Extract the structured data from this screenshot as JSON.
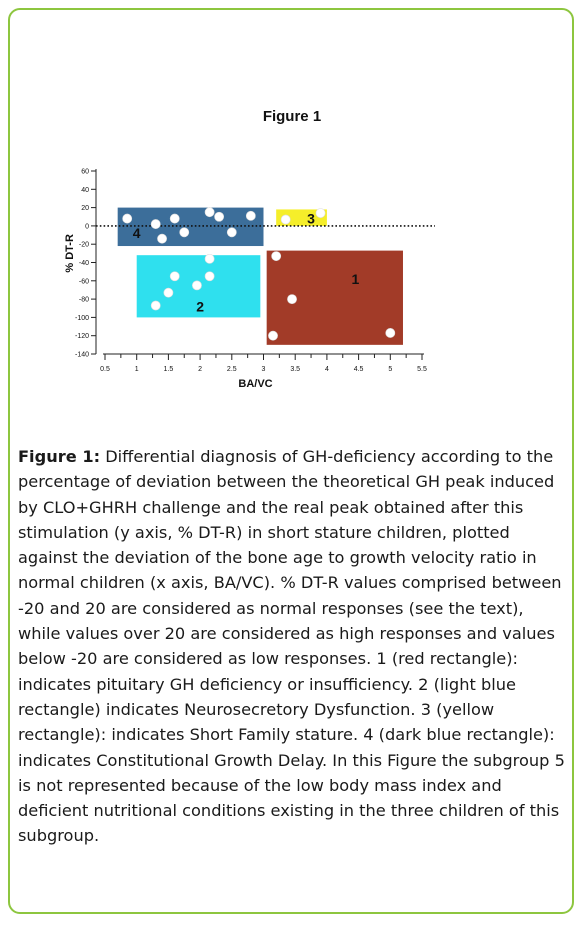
{
  "figure": {
    "title": "Figure 1",
    "caption_label": "Figure 1:",
    "caption_text": "Differential diagnosis of GH-deficiency according to the percentage of deviation between the theoretical GH peak induced by CLO+GHRH challenge and the real peak obtained after this stimulation (y axis, % DT-R) in short stature children, plotted against the deviation of the bone age to growth velocity ratio in normal children (x axis, BA/VC). % DT-R values comprised between -20 and 20 are considered as normal responses (see the text), while values over 20 are considered as high responses and values below -20 are considered as low responses. 1 (red rectangle): indicates pituitary GH deficiency or insufficiency. 2 (light blue rectangle) indicates Neurosecretory Dysfunction. 3 (yellow rectangle): indicates Short Family stature. 4 (dark blue rectangle): indicates Constitutional Growth Delay. In this Figure the subgroup 5 is not represented because of the low body mass index and deficient nutritional conditions existing in the three children of this subgroup."
  },
  "chart_data": {
    "type": "scatter",
    "title": "",
    "xlabel": "BA/VC",
    "ylabel": "% DT-R",
    "xlim": [
      0.5,
      5.5
    ],
    "ylim": [
      -140,
      60
    ],
    "x_ticks": [
      "0.5",
      "1",
      "1.5",
      "2",
      "2.5",
      "3",
      "3.5",
      "4",
      "4.5",
      "5",
      "5.5"
    ],
    "y_ticks": [
      "60",
      "40",
      "20",
      "0",
      "-20",
      "-40",
      "-60",
      "-80",
      "-100",
      "-120",
      "-140"
    ],
    "reference_line": {
      "y": 0,
      "style": "dotted"
    },
    "regions": [
      {
        "label": "4",
        "x": [
          0.7,
          3.0
        ],
        "y": [
          -22,
          20
        ],
        "color": "#3c6e9a"
      },
      {
        "label": "3",
        "x": [
          3.2,
          4.0
        ],
        "y": [
          0,
          18
        ],
        "color": "#f5ee2a"
      },
      {
        "label": "2",
        "x": [
          1.0,
          2.95
        ],
        "y": [
          -100,
          -32
        ],
        "color": "#2fe0ee"
      },
      {
        "label": "1",
        "x": [
          3.05,
          5.2
        ],
        "y": [
          -130,
          -27
        ],
        "color": "#a23b28"
      }
    ],
    "points": [
      {
        "x": 0.85,
        "y": 8
      },
      {
        "x": 1.3,
        "y": 2
      },
      {
        "x": 1.4,
        "y": -14
      },
      {
        "x": 1.6,
        "y": 8
      },
      {
        "x": 1.75,
        "y": -7
      },
      {
        "x": 2.15,
        "y": 15
      },
      {
        "x": 2.3,
        "y": 10
      },
      {
        "x": 2.5,
        "y": -7
      },
      {
        "x": 2.8,
        "y": 11
      },
      {
        "x": 3.35,
        "y": 7
      },
      {
        "x": 3.9,
        "y": 14
      },
      {
        "x": 1.6,
        "y": -55
      },
      {
        "x": 1.5,
        "y": -73
      },
      {
        "x": 1.3,
        "y": -87
      },
      {
        "x": 1.95,
        "y": -65
      },
      {
        "x": 2.15,
        "y": -36
      },
      {
        "x": 2.15,
        "y": -55
      },
      {
        "x": 3.2,
        "y": -33
      },
      {
        "x": 3.45,
        "y": -80
      },
      {
        "x": 3.15,
        "y": -120
      },
      {
        "x": 5.0,
        "y": -117
      }
    ]
  }
}
